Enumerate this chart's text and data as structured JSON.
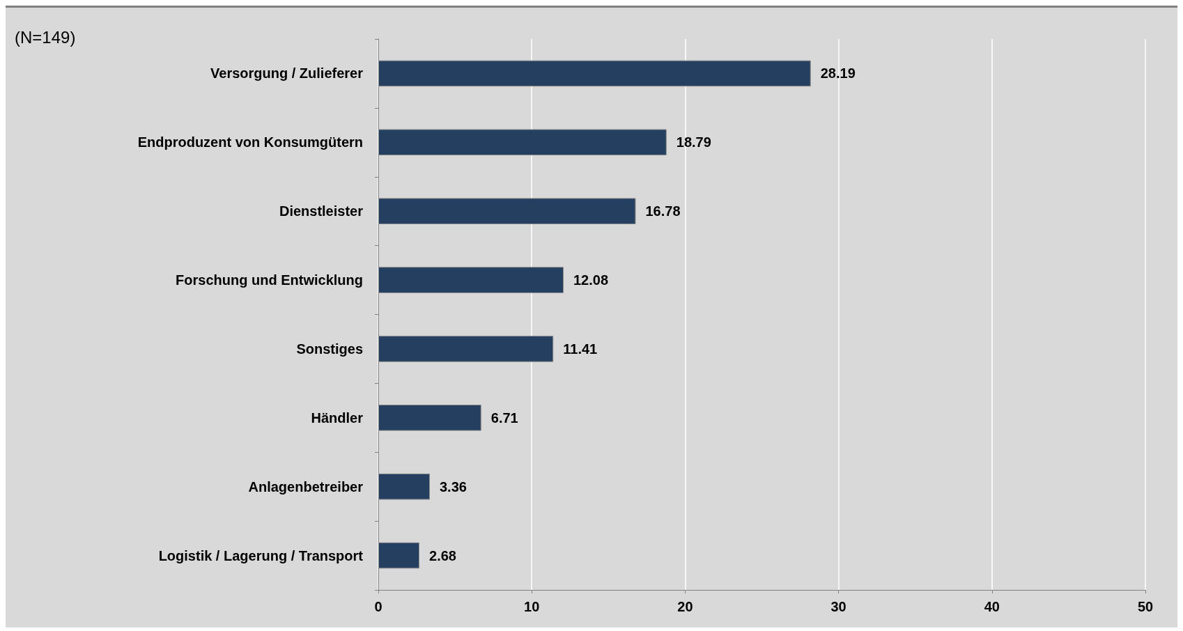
{
  "chart_data": {
    "type": "bar",
    "orientation": "horizontal",
    "categories": [
      "Versorgung / Zulieferer",
      "Endproduzent von Konsumgütern",
      "Dienstleister",
      "Forschung und Entwicklung",
      "Sonstiges",
      "Händler",
      "Anlagenbetreiber",
      "Logistik / Lagerung / Transport"
    ],
    "values": [
      28.19,
      18.79,
      16.78,
      12.08,
      11.41,
      6.71,
      3.36,
      2.68
    ],
    "color": "#243f60",
    "xlim": [
      0,
      50
    ],
    "xticks": [
      0,
      10,
      20,
      30,
      40,
      50
    ],
    "grid": "x",
    "data_labels": true,
    "annotations": [
      "(N=149)"
    ]
  }
}
